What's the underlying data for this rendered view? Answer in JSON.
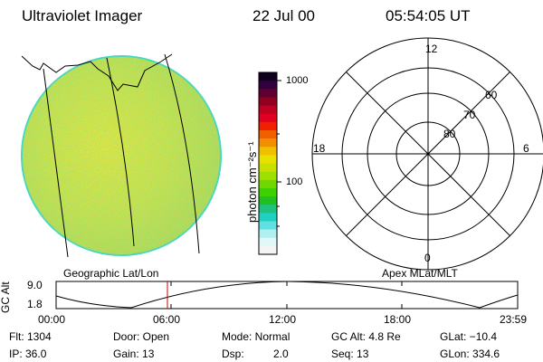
{
  "header": {
    "title": "Ultraviolet Imager",
    "date": "22 Jul 00",
    "time": "05:54:05 UT"
  },
  "colorbar": {
    "unit_label": "photon cm⁻²s⁻¹",
    "ticks": [
      "1000",
      "100"
    ],
    "colors": [
      "#100020",
      "#300040",
      "#600030",
      "#900020",
      "#c00020",
      "#e00020",
      "#f02000",
      "#f06000",
      "#f09000",
      "#f0c000",
      "#e8e000",
      "#c8e000",
      "#a0e000",
      "#70d800",
      "#40d000",
      "#20c020",
      "#20c080",
      "#20d0c0",
      "#60e0e0",
      "#b0f0f0",
      "#e0f8f8",
      "#f4f4f4"
    ]
  },
  "polar": {
    "mlt_labels": {
      "top": "12",
      "left": "18",
      "right": "6",
      "bottom": "0"
    },
    "lat_labels": [
      "80",
      "70",
      "60"
    ]
  },
  "footer": {
    "left_caption": "Geographic Lat/Lon",
    "right_caption": "Apex MLat/MLT",
    "alt_axis_label": "GC Alt",
    "alt_ticks": [
      "9.0",
      "1.8"
    ],
    "time_ticks": [
      "00:00",
      "06:00",
      "12:00",
      "18:00",
      "23:59"
    ]
  },
  "info": {
    "flt": "Flt: 1304",
    "door": "Door: Open",
    "mode": "Mode: Normal",
    "gc_alt": "GC Alt: 4.8 Re",
    "glat": "GLat: −10.4",
    "ip": "IP: 36.0",
    "gain": "Gain: 13",
    "dsp_label": "Dsp:",
    "dsp_value": "2.0",
    "seq": "Seq: 13",
    "glon": "GLon: 334.6"
  },
  "colors": {
    "image_base": "#c8e848",
    "image_edge": "#40d8c0",
    "marker": "#c00000"
  }
}
